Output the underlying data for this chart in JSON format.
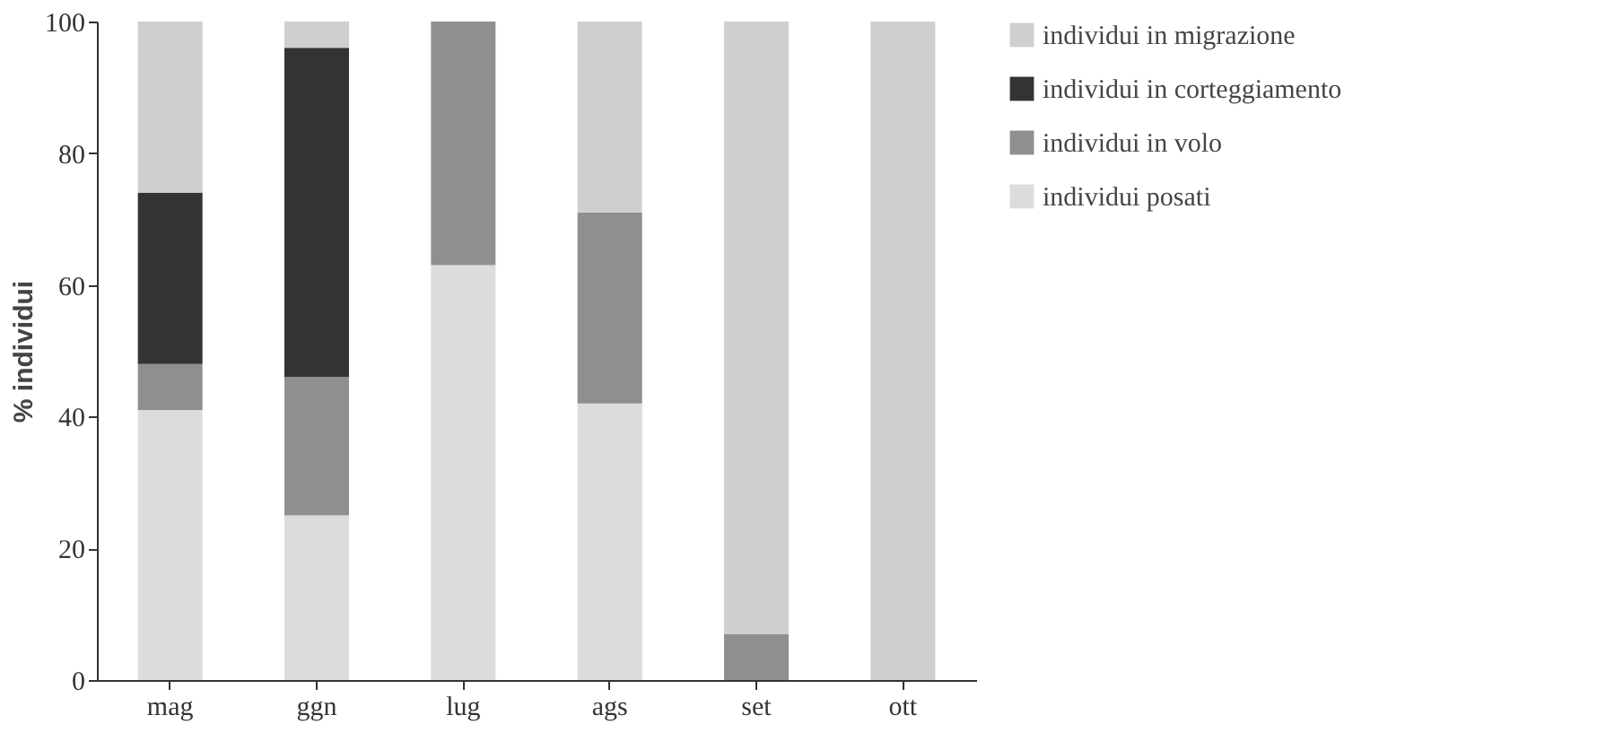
{
  "chart_data": {
    "type": "bar",
    "stacked": true,
    "ylabel": "% individui",
    "categories": [
      "mag",
      "ggn",
      "lug",
      "ags",
      "set",
      "ott"
    ],
    "series": [
      {
        "name": "individui posati",
        "color": "#dcdcdc",
        "values": [
          41,
          25,
          63,
          42,
          0,
          0
        ]
      },
      {
        "name": "individui in volo",
        "color": "#8f8f8f",
        "values": [
          7,
          21,
          37,
          29,
          7,
          0
        ]
      },
      {
        "name": "individui in corteggiamento",
        "color": "#333333",
        "values": [
          26,
          50,
          0,
          0,
          0,
          0
        ]
      },
      {
        "name": "individui in migrazione",
        "color": "#cfcfcf",
        "values": [
          26,
          4,
          0,
          29,
          93,
          100
        ]
      }
    ],
    "ylim": [
      0,
      100
    ],
    "yticks": [
      0,
      20,
      40,
      60,
      80,
      100
    ],
    "grid": false,
    "legend": "right"
  }
}
